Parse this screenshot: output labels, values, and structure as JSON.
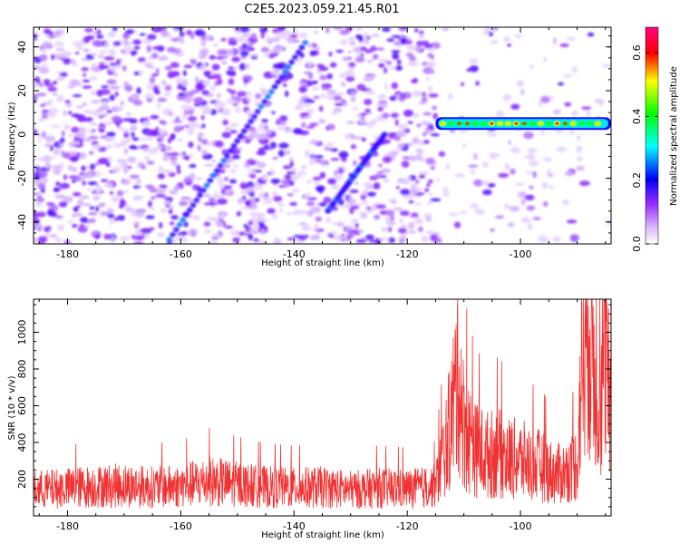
{
  "title": "C2E5.2023.059.21.45.R01",
  "chart_data": [
    {
      "type": "heatmap",
      "xlabel": "Height of straight line (km)",
      "ylabel": "Frequency (Hz)",
      "xlim": [
        -186,
        -84
      ],
      "ylim": [
        -50,
        49
      ],
      "xticks": [
        -180,
        -160,
        -140,
        -120,
        -100
      ],
      "yticks": [
        -40,
        -20,
        0,
        20,
        40
      ],
      "colorbar": {
        "label": "Normalized spectral amplitude",
        "range": [
          0,
          0.68
        ],
        "ticks": [
          0.0,
          0.2,
          0.4,
          0.6
        ],
        "colormap": [
          "#ffffff",
          "#9b30ff",
          "#0000ff",
          "#00ffff",
          "#00ff00",
          "#ffff00",
          "#ff0000",
          "#ff00ff"
        ]
      },
      "features": [
        {
          "name": "",
          "x": [
            -115,
            -84
          ],
          "y": [
            4,
            6
          ],
          "amplitude": 0.6
        },
        {
          "name": "",
          "x": [
            -162,
            -138
          ],
          "y": [
            -48,
            42
          ],
          "amplitude": 0.25
        },
        {
          "name": "",
          "x": [
            -134,
            -124
          ],
          "y": [
            -35,
            0
          ],
          "amplitude": 0.25
        }
      ]
    },
    {
      "type": "line",
      "xlabel": "Height of straight line (km)",
      "ylabel": "SNR (10 * v/v)",
      "xlim": [
        -186,
        -84
      ],
      "ylim": [
        0,
        1180
      ],
      "xticks": [
        -180,
        -160,
        -140,
        -120,
        -100
      ],
      "yticks": [
        200,
        400,
        600,
        800,
        1000
      ],
      "series": [
        {
          "color": "#f03232",
          "x": [
            -186,
            -180,
            -175,
            -170,
            -165,
            -160,
            -155,
            -150,
            -145,
            -140,
            -135,
            -130,
            -125,
            -120,
            -115,
            -113,
            -112,
            -111,
            -110,
            -108,
            -106,
            -104,
            -102,
            -100,
            -98,
            -96,
            -94,
            -92,
            -90,
            -89,
            -88,
            -87,
            -86,
            -85,
            -84
          ],
          "y": [
            150,
            160,
            170,
            175,
            165,
            170,
            200,
            180,
            165,
            160,
            165,
            150,
            160,
            155,
            170,
            420,
            600,
            850,
            500,
            380,
            350,
            360,
            330,
            320,
            300,
            280,
            240,
            250,
            300,
            950,
            1150,
            900,
            700,
            950,
            500
          ]
        }
      ]
    }
  ]
}
